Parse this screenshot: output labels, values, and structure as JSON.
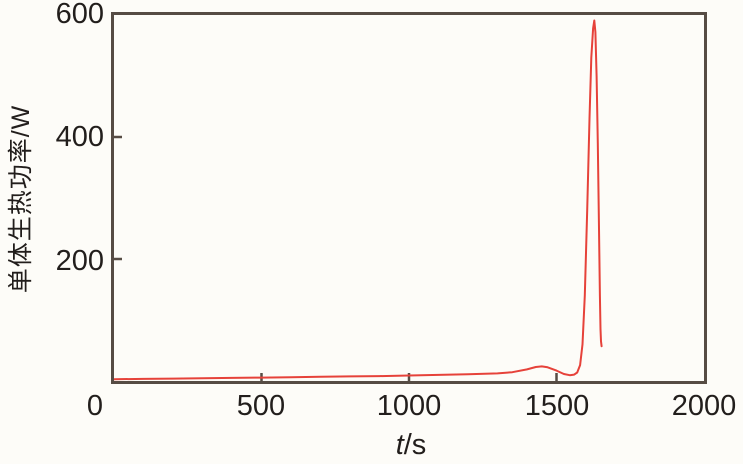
{
  "chart_data": {
    "type": "line",
    "title": "",
    "xlabel": "t/s",
    "xlabel_var": "t",
    "xlabel_rest": "/s",
    "ylabel": "单体生热功率/W",
    "xlim": [
      0,
      2000
    ],
    "ylim": [
      0,
      600
    ],
    "grid": false,
    "legend": "none",
    "axis_color": "#564c44",
    "line_color": "#e6423a",
    "tick_direction": "in",
    "xticks": [
      {
        "v": 0,
        "label": "0"
      },
      {
        "v": 500,
        "label": "500"
      },
      {
        "v": 1000,
        "label": "1000"
      },
      {
        "v": 1500,
        "label": "1500"
      },
      {
        "v": 2000,
        "label": "2000"
      }
    ],
    "yticks": [
      {
        "v": 200,
        "label": "200"
      },
      {
        "v": 400,
        "label": "400"
      },
      {
        "v": 600,
        "label": "600"
      }
    ],
    "series": [
      {
        "name": "单体生热功率",
        "color": "#e6423a",
        "points": [
          [
            0,
            3
          ],
          [
            100,
            3.5
          ],
          [
            200,
            4
          ],
          [
            300,
            4.5
          ],
          [
            400,
            5
          ],
          [
            500,
            5.5
          ],
          [
            600,
            6
          ],
          [
            700,
            7
          ],
          [
            800,
            7.5
          ],
          [
            900,
            8
          ],
          [
            1000,
            9
          ],
          [
            1100,
            10
          ],
          [
            1200,
            11
          ],
          [
            1300,
            12.5
          ],
          [
            1350,
            14.5
          ],
          [
            1400,
            19
          ],
          [
            1430,
            23
          ],
          [
            1450,
            24
          ],
          [
            1470,
            22.5
          ],
          [
            1500,
            17
          ],
          [
            1525,
            11.5
          ],
          [
            1545,
            9.5
          ],
          [
            1560,
            10.5
          ],
          [
            1570,
            14
          ],
          [
            1580,
            26
          ],
          [
            1588,
            60
          ],
          [
            1596,
            140
          ],
          [
            1604,
            280
          ],
          [
            1612,
            430
          ],
          [
            1618,
            530
          ],
          [
            1624,
            578
          ],
          [
            1628,
            591
          ],
          [
            1632,
            572
          ],
          [
            1636,
            500
          ],
          [
            1640,
            390
          ],
          [
            1644,
            250
          ],
          [
            1647,
            140
          ],
          [
            1649,
            85
          ],
          [
            1651,
            65
          ],
          [
            1653,
            57
          ]
        ],
        "peak": {
          "t": 1628,
          "value": 591
        }
      }
    ]
  }
}
